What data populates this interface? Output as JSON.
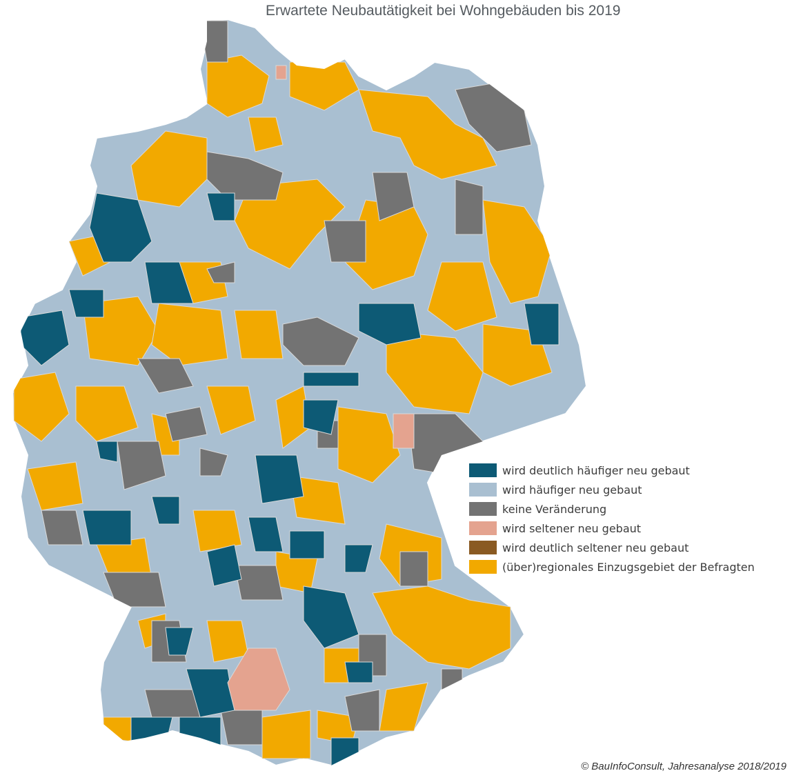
{
  "title": "Erwartete Neubautätigkeit bei Wohngebäuden bis 2019",
  "legend": {
    "items": [
      {
        "label": "wird deutlich häufiger neu gebaut",
        "color": "#0d5a75"
      },
      {
        "label": "wird häufiger neu gebaut",
        "color": "#a9bfd1"
      },
      {
        "label": "keine Veränderung",
        "color": "#737373"
      },
      {
        "label": "wird seltener neu gebaut",
        "color": "#e4a38f"
      },
      {
        "label": "wird deutlich seltener neu gebaut",
        "color": "#8a5a22"
      },
      {
        "label": "(über)regionales Einzugsgebiet der Befragten",
        "color": "#f2a900"
      }
    ]
  },
  "credit": "© BauInfoConsult, Jahresanalyse 2018/2019",
  "map": {
    "region": "Deutschland",
    "border_color": "#d9d9d9",
    "base_color": "#a9bfd1"
  }
}
